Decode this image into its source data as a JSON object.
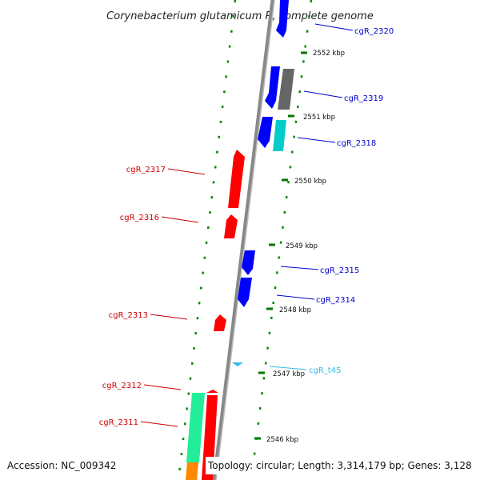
{
  "title": "Corynebacterium glutamicum R, complete genome",
  "footer": {
    "accession": "Accession: NC_009342",
    "summary": "Topology: circular; Length: 3,314,179 bp; Genes: 3,128"
  },
  "colors": {
    "forward_cds": "#0000ff",
    "reverse_cds": "#ff0000",
    "gray_feature": "#666666",
    "cyan_feature": "#00cccc",
    "trna": "#33bbee",
    "mint_feature": "#22ee99",
    "orange_feature": "#ff8800",
    "tick": "#007700",
    "backbone": "#888888"
  },
  "scale_labels": [
    "2552 kbp",
    "2551 kbp",
    "2550 kbp",
    "2549 kbp",
    "2548 kbp",
    "2547 kbp",
    "2546 kbp"
  ],
  "gene_labels": [
    "cgR_2320",
    "cgR_2319",
    "cgR_2318",
    "cgR_2317",
    "cgR_2316",
    "cgR_2315",
    "cgR_2314",
    "cgR_2313",
    "cgR_t45",
    "cgR_2312",
    "cgR_2311"
  ]
}
